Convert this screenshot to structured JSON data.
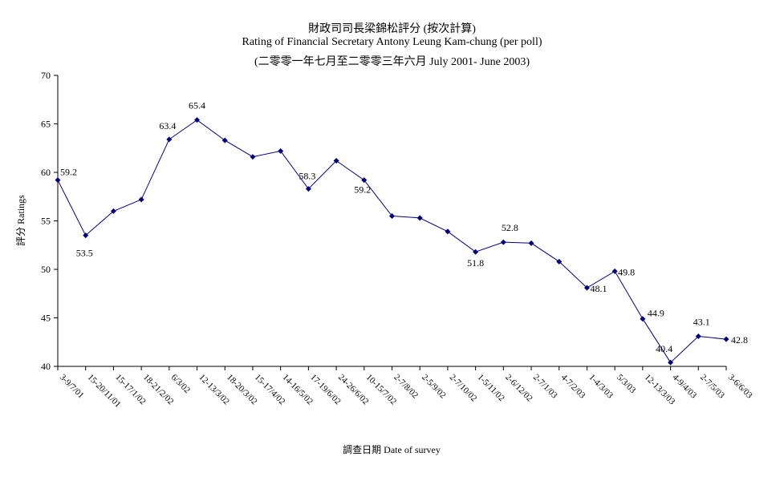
{
  "chart_data": {
    "type": "line",
    "title": "財政司司長梁錦松評分 (按次計算)",
    "subtitle": "Rating of Financial Secretary Antony Leung Kam-chung  (per poll)",
    "subtitle2": "(二零零一年七月至二零零三年六月 July 2001- June 2003)",
    "xlabel": "調查日期 Date of survey",
    "ylabel": "評分 Ratings",
    "ylim": [
      40,
      70
    ],
    "yticks": [
      40,
      45,
      50,
      55,
      60,
      65,
      70
    ],
    "grid": false,
    "legend": "none",
    "line_color": "#000080",
    "categories": [
      "3-9/7/01",
      "15-20/11/01",
      "15-17/1/02",
      "18-21/2/02",
      "6/3/02",
      "12-13/3/02",
      "18-20/3/02",
      "15-17/4/02",
      "14-16/5/02",
      "17-19/6/02",
      "24-26/6/02",
      "10-15/7/02",
      "2-7/8/02",
      "2-5/9/02",
      "2-7/10/02",
      "1-5/11/02",
      "2-6/12/02",
      "2-7/1/03",
      "4-7/2/03",
      "1-4/3/03",
      "5/3/03",
      "12-13/3/03",
      "4-9/4/03",
      "2-7/5/03",
      "3-6/6/03"
    ],
    "values": [
      59.2,
      53.5,
      56.0,
      57.2,
      63.4,
      65.4,
      63.3,
      61.6,
      62.2,
      58.3,
      61.2,
      59.2,
      55.5,
      55.3,
      53.9,
      51.8,
      52.8,
      52.7,
      50.8,
      48.1,
      49.8,
      44.9,
      40.4,
      43.1,
      42.8
    ],
    "data_labels": [
      {
        "index": 0,
        "text": "59.2"
      },
      {
        "index": 1,
        "text": "53.5"
      },
      {
        "index": 4,
        "text": "63.4"
      },
      {
        "index": 5,
        "text": "65.4"
      },
      {
        "index": 9,
        "text": "58.3"
      },
      {
        "index": 11,
        "text": "59.2"
      },
      {
        "index": 15,
        "text": "51.8"
      },
      {
        "index": 16,
        "text": "52.8"
      },
      {
        "index": 19,
        "text": "48.1"
      },
      {
        "index": 20,
        "text": "49.8"
      },
      {
        "index": 21,
        "text": "44.9"
      },
      {
        "index": 22,
        "text": "40.4"
      },
      {
        "index": 23,
        "text": "43.1"
      },
      {
        "index": 24,
        "text": "42.8"
      }
    ]
  }
}
